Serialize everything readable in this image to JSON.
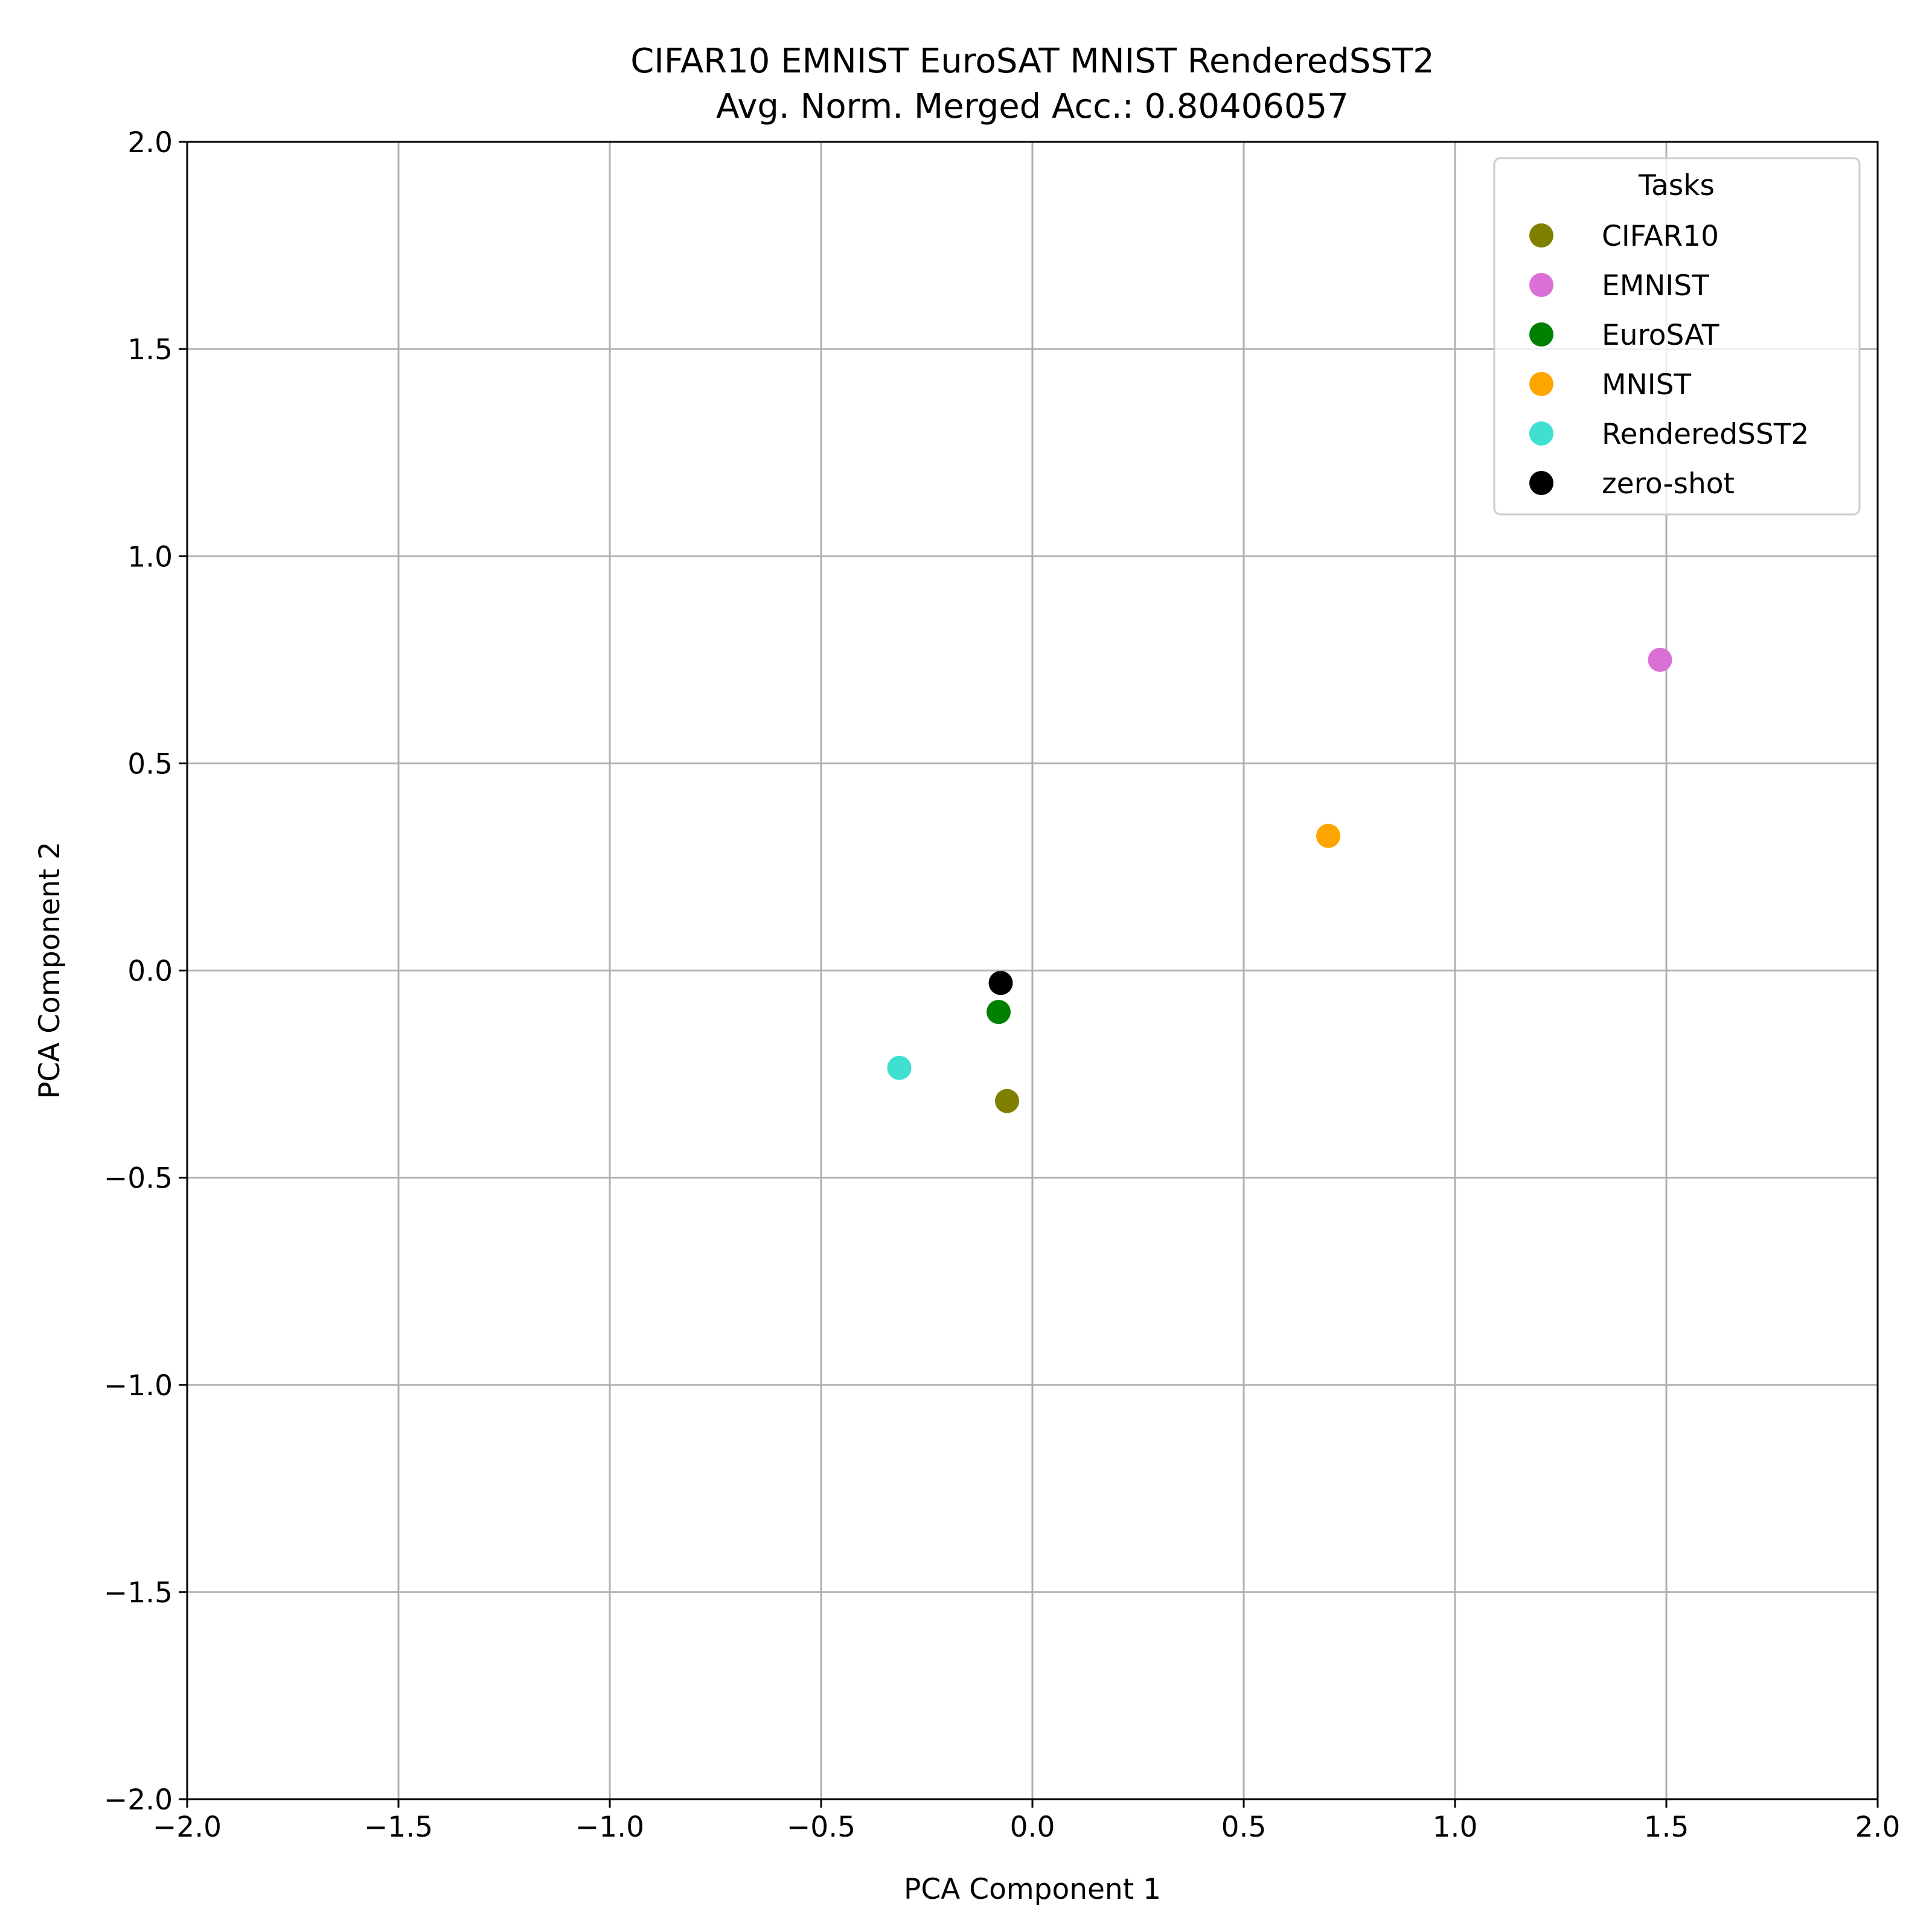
{
  "chart_data": {
    "type": "scatter",
    "title": "CIFAR10 EMNIST EuroSAT MNIST RenderedSST2",
    "subtitle": "Avg. Norm. Merged Acc.: 0.80406057",
    "xlabel": "PCA Component 1",
    "ylabel": "PCA Component 2",
    "xlim": [
      -2.0,
      2.0
    ],
    "ylim": [
      -2.0,
      2.0
    ],
    "xticks": [
      "−2.0",
      "−1.5",
      "−1.0",
      "−0.5",
      "0.0",
      "0.5",
      "1.0",
      "1.5",
      "2.0"
    ],
    "yticks": [
      "−2.0",
      "−1.5",
      "−1.0",
      "−0.5",
      "0.0",
      "0.5",
      "1.0",
      "1.5",
      "2.0"
    ],
    "grid": true,
    "legend": {
      "title": "Tasks",
      "placement": "top-right"
    },
    "series": [
      {
        "name": "CIFAR10",
        "color": "#808000",
        "x": -0.06,
        "y": -0.315
      },
      {
        "name": "EMNIST",
        "color": "#da70d6",
        "x": 1.485,
        "y": 0.75
      },
      {
        "name": "EuroSAT",
        "color": "#008000",
        "x": -0.08,
        "y": -0.1
      },
      {
        "name": "MNIST",
        "color": "#ffa500",
        "x": 0.7,
        "y": 0.325
      },
      {
        "name": "RenderedSST2",
        "color": "#40e0d0",
        "x": -0.315,
        "y": -0.235
      },
      {
        "name": "zero-shot",
        "color": "#000000",
        "x": -0.075,
        "y": -0.03
      }
    ]
  }
}
